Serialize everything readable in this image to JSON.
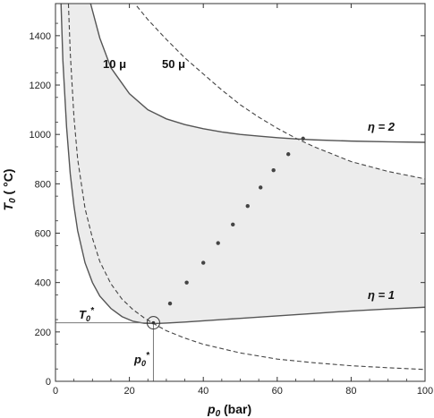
{
  "chart_data": {
    "type": "line",
    "title": "",
    "xlabel": "p0 (bar)",
    "ylabel": "T0 (°C)",
    "xlabel_parts": {
      "symbol": "p",
      "sub": "0",
      "unit": " (bar)"
    },
    "ylabel_parts": {
      "symbol": "T",
      "sub": "0",
      "unit": " ( °C)"
    },
    "xlim": [
      0,
      100
    ],
    "ylim": [
      0,
      1530
    ],
    "xticks": [
      0,
      20,
      40,
      60,
      80,
      100
    ],
    "yticks": [
      0,
      200,
      400,
      600,
      800,
      1000,
      1200,
      1400
    ],
    "grid": false,
    "series": [
      {
        "name": "η = 2",
        "style": "solid",
        "x": [
          9.5,
          12,
          15,
          20,
          25,
          30,
          35,
          40,
          45,
          50,
          55,
          60,
          65,
          70,
          80,
          90,
          100
        ],
        "y": [
          1530,
          1390,
          1270,
          1165,
          1100,
          1063,
          1040,
          1023,
          1010,
          1000,
          993,
          987,
          982,
          978,
          973,
          970,
          968
        ]
      },
      {
        "name": "η = 1",
        "style": "solid",
        "x": [
          1.5,
          2,
          3,
          4,
          5,
          6,
          8,
          10,
          12,
          15,
          18,
          21,
          24,
          27,
          30,
          35,
          40,
          50,
          60,
          70,
          80,
          90,
          100
        ],
        "y": [
          1530,
          1300,
          1030,
          840,
          710,
          610,
          480,
          400,
          345,
          295,
          262,
          243,
          235,
          234,
          236,
          240,
          245,
          255,
          265,
          275,
          285,
          293,
          300
        ]
      },
      {
        "name": "10 μ",
        "style": "dashed",
        "x": [
          3.5,
          4,
          5,
          6,
          8,
          10,
          12,
          15,
          18,
          21,
          24,
          27,
          30,
          35,
          40,
          50,
          60,
          70,
          80,
          90,
          100
        ],
        "y": [
          1530,
          1330,
          1070,
          900,
          700,
          580,
          485,
          395,
          333,
          290,
          257,
          230,
          205,
          175,
          150,
          115,
          90,
          75,
          63,
          55,
          48
        ]
      },
      {
        "name": "50 μ",
        "style": "dashed",
        "x": [
          22,
          25,
          30,
          35,
          40,
          45,
          50,
          55,
          60,
          65,
          70,
          80,
          90,
          100
        ],
        "y": [
          1520,
          1465,
          1385,
          1310,
          1245,
          1180,
          1120,
          1070,
          1025,
          985,
          950,
          890,
          850,
          820
        ]
      },
      {
        "name": "dotted path",
        "style": "dots",
        "x": [
          31,
          35.5,
          40,
          44,
          48,
          52,
          55.5,
          59,
          63,
          67
        ],
        "y": [
          315,
          400,
          480,
          560,
          635,
          710,
          785,
          855,
          920,
          983
        ]
      }
    ],
    "point": {
      "x": 26.5,
      "y": 237
    },
    "annotations": {
      "eta2": "η = 2",
      "eta1": "η = 1",
      "mu10": "10 μ",
      "mu50": "50 μ",
      "t0star": {
        "symbol": "T",
        "sub": "0",
        "sup": "*"
      },
      "p0star": {
        "symbol": "p",
        "sub": "0",
        "sup": "*"
      }
    }
  }
}
